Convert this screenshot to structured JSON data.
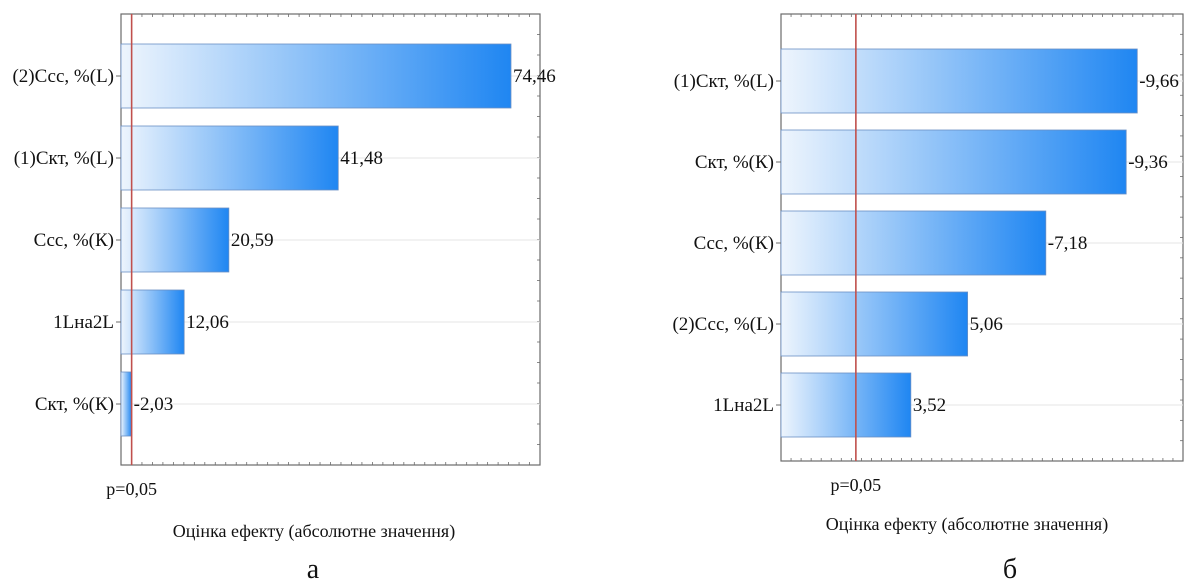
{
  "chart_data": [
    {
      "type": "bar",
      "orientation": "horizontal",
      "panel_label": "а",
      "categories": [
        "(2)Ссс, %(L)",
        "(1)Скт, %(L)",
        "Ссс, %(К)",
        "1Lна2L",
        "Скт, %(К)"
      ],
      "values": [
        74.46,
        41.48,
        20.59,
        12.06,
        -2.03
      ],
      "value_labels": [
        "74,46",
        "41,48",
        "20,59",
        "12,06",
        "-2,03"
      ],
      "reference_line": {
        "value": 2.03,
        "label": "p=0,05",
        "color": "#c0504d"
      },
      "xlabel": "Оцінка ефекту (абсолютне значення)",
      "xlim": [
        0,
        80
      ],
      "grid": false,
      "bar_gradient": [
        "#eef5fd",
        "#1f86f2"
      ]
    },
    {
      "type": "bar",
      "orientation": "horizontal",
      "panel_label": "б",
      "categories": [
        "(1)Скт, %(L)",
        "Скт, %(К)",
        "Ссс, %(К)",
        "(2)Ссс, %(L)",
        "1Lна2L"
      ],
      "values": [
        -9.66,
        -9.36,
        -7.18,
        5.06,
        3.52
      ],
      "value_labels": [
        "-9,66",
        "-9,36",
        "-7,18",
        "5,06",
        "3,52"
      ],
      "reference_line": {
        "value": 2.03,
        "label": "p=0,05",
        "color": "#c0504d"
      },
      "xlabel": "Оцінка ефекту (абсолютне значення)",
      "xlim": [
        0,
        10.9
      ],
      "grid": false,
      "bar_gradient": [
        "#eef5fd",
        "#1f86f2"
      ]
    }
  ]
}
